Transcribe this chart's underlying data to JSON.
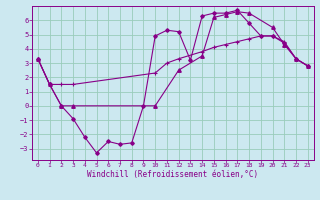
{
  "background_color": "#cce8f0",
  "grid_color": "#99ccbb",
  "line_color": "#880088",
  "xlabel": "Windchill (Refroidissement éolien,°C)",
  "xlim": [
    -0.5,
    23.5
  ],
  "ylim": [
    -3.8,
    7.0
  ],
  "yticks": [
    -3,
    -2,
    -1,
    0,
    1,
    2,
    3,
    4,
    5,
    6
  ],
  "xticks": [
    0,
    1,
    2,
    3,
    4,
    5,
    6,
    7,
    8,
    9,
    10,
    11,
    12,
    13,
    14,
    15,
    16,
    17,
    18,
    19,
    20,
    21,
    22,
    23
  ],
  "line1_x": [
    0,
    1,
    2,
    3,
    4,
    5,
    6,
    7,
    8,
    9,
    10,
    11,
    12,
    13,
    14,
    15,
    16,
    17,
    18,
    19,
    20,
    21,
    22,
    23
  ],
  "line1_y": [
    3.3,
    1.5,
    0.0,
    -0.9,
    -2.2,
    -3.3,
    -2.5,
    -2.7,
    -2.6,
    0.0,
    4.9,
    5.3,
    5.2,
    3.2,
    6.3,
    6.5,
    6.5,
    6.7,
    5.8,
    4.9,
    4.9,
    4.4,
    3.3,
    2.8
  ],
  "line2_x": [
    0,
    1,
    2,
    3,
    10,
    11,
    12,
    14,
    15,
    16,
    17,
    18,
    19,
    20,
    21,
    22,
    23
  ],
  "line2_y": [
    3.3,
    1.5,
    1.5,
    1.5,
    2.3,
    3.0,
    3.3,
    3.8,
    4.1,
    4.3,
    4.5,
    4.7,
    4.9,
    4.9,
    4.5,
    3.3,
    2.8
  ],
  "line3_x": [
    0,
    1,
    2,
    3,
    10,
    12,
    14,
    15,
    16,
    17,
    18,
    20,
    21,
    22,
    23
  ],
  "line3_y": [
    3.3,
    1.5,
    0.0,
    0.0,
    0.0,
    2.5,
    3.5,
    6.2,
    6.4,
    6.6,
    6.5,
    5.5,
    4.3,
    3.3,
    2.8
  ]
}
